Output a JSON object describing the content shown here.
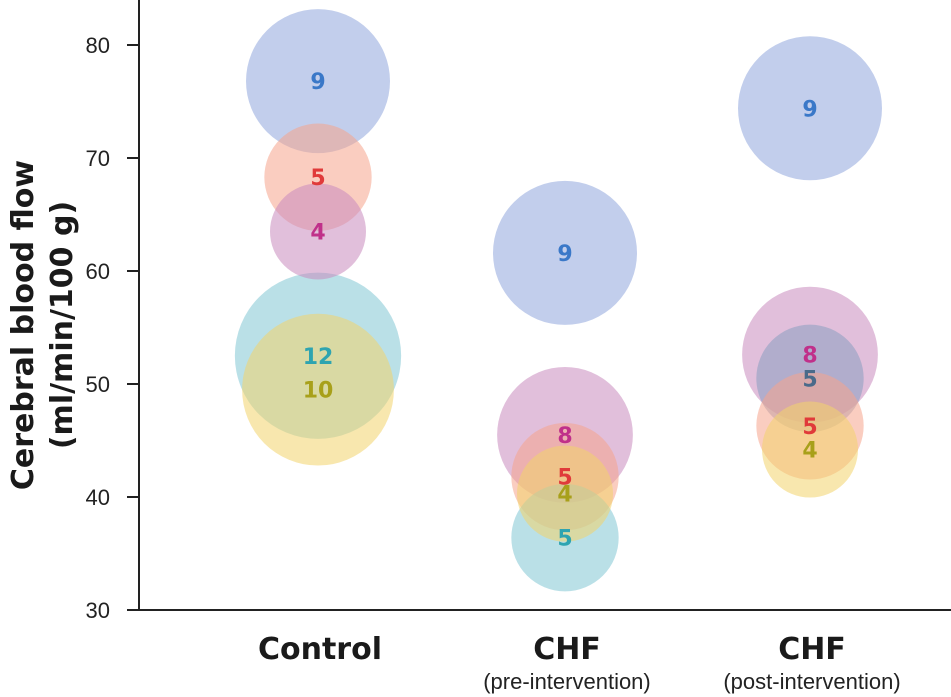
{
  "chart_data": {
    "type": "scatter",
    "title": "",
    "xlabel": "",
    "ylabel_line1": "Cerebral blood flow",
    "ylabel_line2": "(ml/min/100 g)",
    "ylim": [
      30,
      84
    ],
    "yticks": [
      30,
      40,
      50,
      60,
      70,
      80
    ],
    "grid": false,
    "legend": "none",
    "categories": [
      {
        "name": "Control",
        "sub": ""
      },
      {
        "name": "CHF",
        "sub": "(pre-intervention)"
      },
      {
        "name": "CHF",
        "sub": "(post-intervention)"
      }
    ],
    "points": [
      {
        "category": 0,
        "y": 52.5,
        "n": 12,
        "fill": "#82c6d4",
        "text": "#2ea4b0"
      },
      {
        "category": 0,
        "y": 49.5,
        "n": 10,
        "fill": "#f2d36b",
        "text": "#a8a01a"
      },
      {
        "category": 0,
        "y": 76.8,
        "n": 9,
        "fill": "#8fa5dc",
        "text": "#3a78c8"
      },
      {
        "category": 0,
        "y": 68.3,
        "n": 5,
        "fill": "#f5a48c",
        "text": "#e03a3a"
      },
      {
        "category": 0,
        "y": 63.5,
        "n": 4,
        "fill": "#c88bbd",
        "text": "#c0308a"
      },
      {
        "category": 1,
        "y": 61.6,
        "n": 9,
        "fill": "#8fa5dc",
        "text": "#3a78c8"
      },
      {
        "category": 1,
        "y": 45.5,
        "n": 8,
        "fill": "#c88bbd",
        "text": "#c0308a"
      },
      {
        "category": 1,
        "y": 41.8,
        "n": 5,
        "fill": "#f5a48c",
        "text": "#e03a3a"
      },
      {
        "category": 1,
        "y": 40.3,
        "n": 4,
        "fill": "#f2d36b",
        "text": "#a8a01a"
      },
      {
        "category": 1,
        "y": 36.4,
        "n": 5,
        "fill": "#82c6d4",
        "text": "#2ea4b0"
      },
      {
        "category": 2,
        "y": 74.4,
        "n": 9,
        "fill": "#8fa5dc",
        "text": "#3a78c8"
      },
      {
        "category": 2,
        "y": 52.6,
        "n": 8,
        "fill": "#c88bbd",
        "text": "#c0308a"
      },
      {
        "category": 2,
        "y": 50.5,
        "n": 5,
        "fill": "#8b9fbf",
        "text": "#4a6a8a"
      },
      {
        "category": 2,
        "y": 46.3,
        "n": 5,
        "fill": "#f5a48c",
        "text": "#e03a3a"
      },
      {
        "category": 2,
        "y": 44.2,
        "n": 4,
        "fill": "#f2d36b",
        "text": "#a8a01a"
      }
    ]
  }
}
